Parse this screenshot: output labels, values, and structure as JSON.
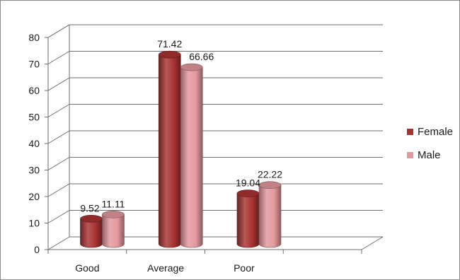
{
  "chart_data": {
    "type": "bar",
    "title": "",
    "xlabel": "",
    "ylabel": "",
    "categories": [
      "Good",
      "Average",
      "Poor"
    ],
    "series": [
      {
        "name": "Female",
        "values": [
          9.52,
          71.42,
          19.04
        ],
        "color": "#a83232"
      },
      {
        "name": "Male",
        "values": [
          11.11,
          66.66,
          22.22
        ],
        "color": "#e3999c"
      }
    ],
    "data_labels": [
      [
        "9.52",
        "71.42",
        "19.04"
      ],
      [
        "11.11",
        "66.66",
        "22.22"
      ]
    ],
    "yticks": [
      "0",
      "10",
      "20",
      "30",
      "40",
      "50",
      "60",
      "70",
      "80"
    ],
    "ylim": [
      0,
      80
    ],
    "grid": true,
    "legend": "right",
    "style": "3d-cylinder"
  }
}
